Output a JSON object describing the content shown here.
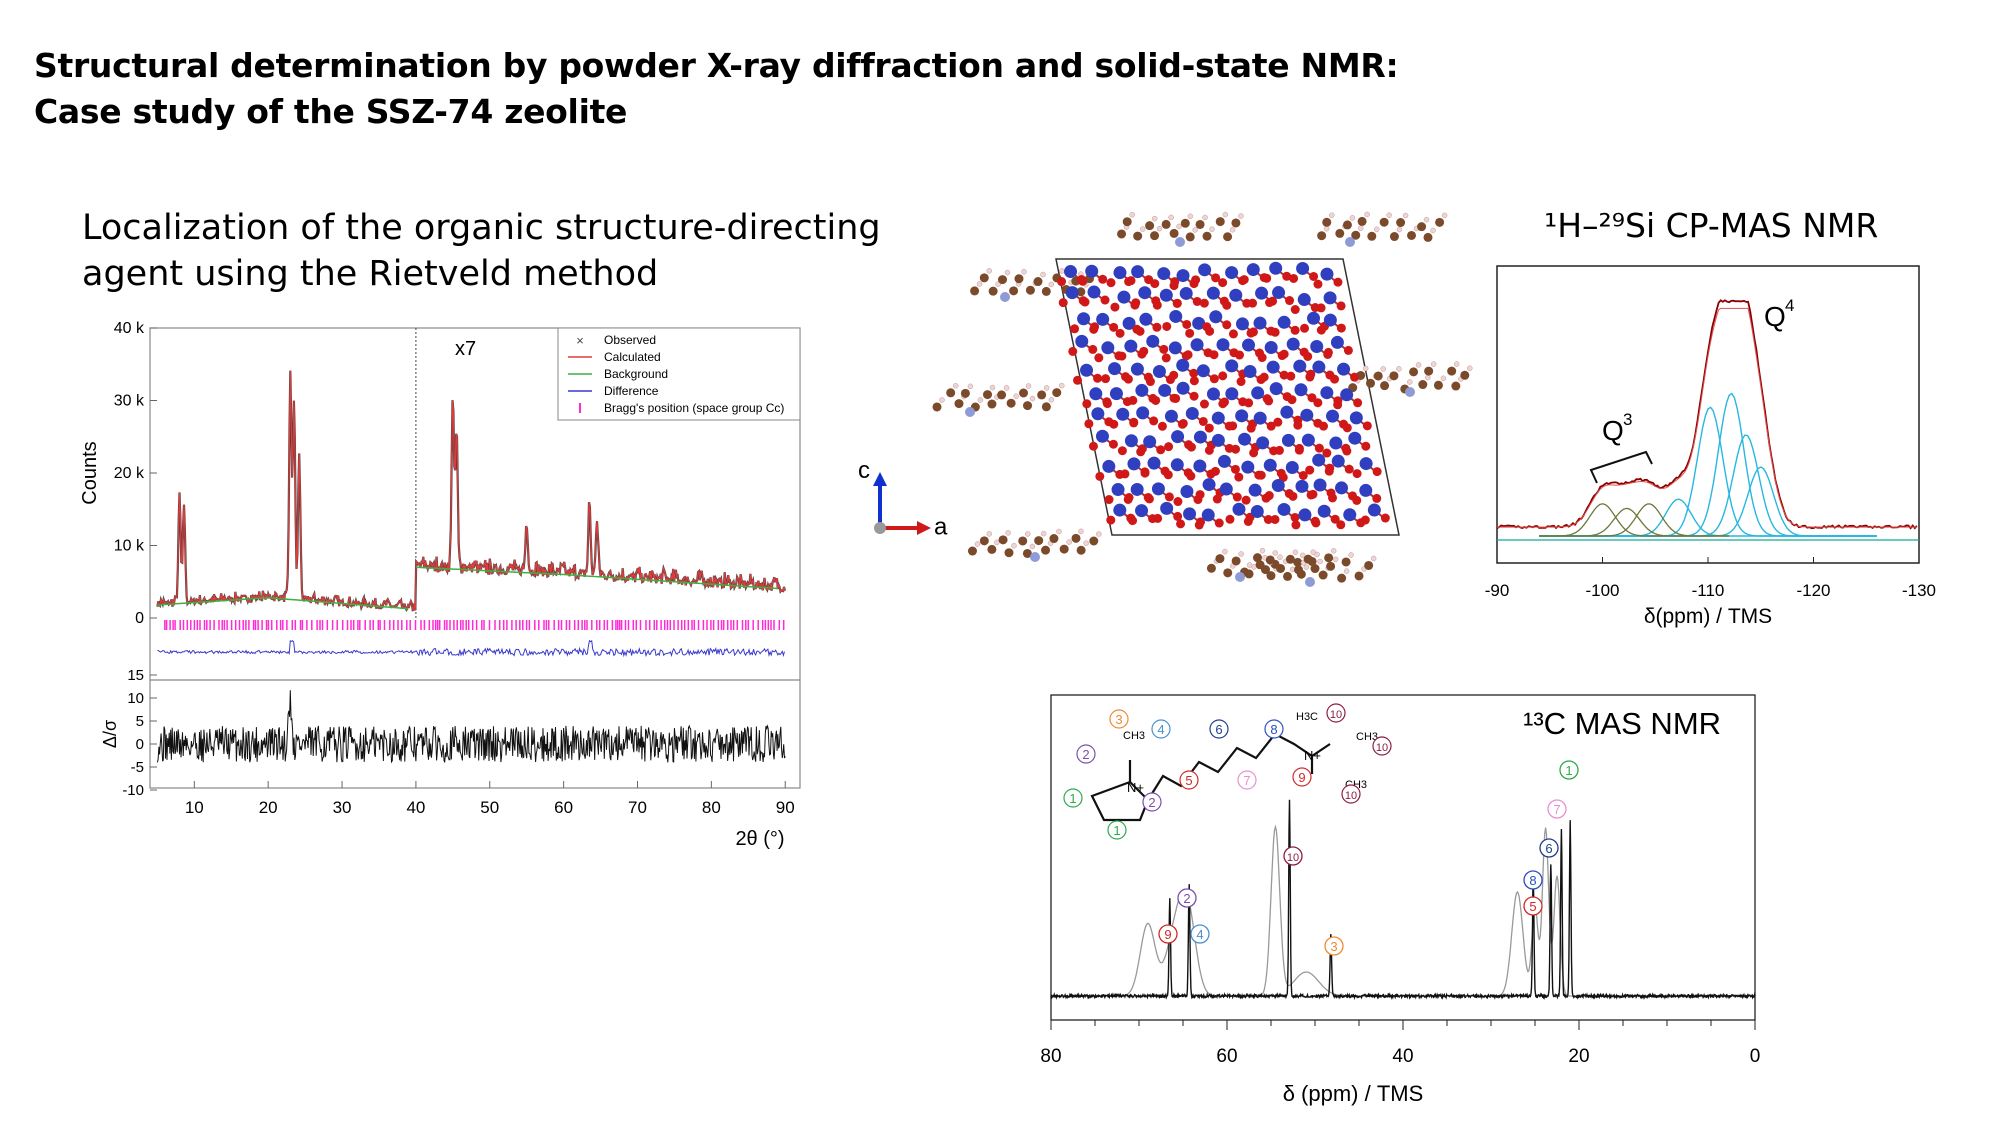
{
  "slide": {
    "title_line1": "Structural determination by powder X-ray diffraction and solid-state NMR:",
    "title_line2": "Case study of the SSZ-74 zeolite",
    "rietveld_heading_line1": "Localization of the organic structure-directing",
    "rietveld_heading_line2": "agent using the Rietveld method"
  },
  "colors": {
    "observed": "#444444",
    "calculated": "#e23b3b",
    "background": "#3cb043",
    "difference": "#3a3acc",
    "bragg": "#ff2bd6",
    "si_atom": "#2f3fc0",
    "o_atom": "#d01818",
    "c_atom": "#7a4a2a",
    "n_atom": "#8f9bd6",
    "h_atom": "#f0d4d4",
    "si_fit": "#27b7e0",
    "si_envelope": "#8b0000"
  },
  "chart_data": [
    {
      "type": "line",
      "panel": "Rietveld refinement",
      "annotation": "x7",
      "xlabel": "2θ (°)",
      "ylabel": "Counts",
      "xlim": [
        4,
        92
      ],
      "ylim": [
        0,
        40000
      ],
      "x_ticks": [
        "10",
        "20",
        "30",
        "40",
        "50",
        "60",
        "70",
        "80",
        "90"
      ],
      "y_ticks": [
        "0",
        "10 k",
        "20 k",
        "30 k",
        "40 k"
      ],
      "legend": [
        "Observed",
        "Calculated",
        "Background",
        "Difference",
        "Bragg's position (space group Cc)"
      ],
      "legend_placement": "top-right",
      "scale_change_at_2theta": 40,
      "background": {
        "x": [
          5,
          20,
          40,
          40,
          60,
          90
        ],
        "y": [
          1800,
          2800,
          1200,
          7000,
          6000,
          4000
        ]
      },
      "peaks": [
        {
          "x": 8.0,
          "y": 17000
        },
        {
          "x": 8.6,
          "y": 15500
        },
        {
          "x": 23.0,
          "y": 34000
        },
        {
          "x": 23.5,
          "y": 30000
        },
        {
          "x": 24.2,
          "y": 22000
        },
        {
          "x": 45.0,
          "y": 31000
        },
        {
          "x": 45.5,
          "y": 26000
        },
        {
          "x": 55.0,
          "y": 13000
        },
        {
          "x": 63.5,
          "y": 15500
        },
        {
          "x": 64.5,
          "y": 13000
        }
      ],
      "residual_panel": {
        "ylabel": "Δ/σ",
        "ylim": [
          -10,
          15
        ],
        "y_ticks": [
          "15",
          "10",
          "5",
          "0",
          "-5",
          "-10"
        ]
      }
    },
    {
      "type": "line",
      "panel": "1H-29Si CP-MAS NMR",
      "xlabel": "δ(ppm) / TMS",
      "xlim": [
        -90,
        -130
      ],
      "x_ticks": [
        "-90",
        "-100",
        "-110",
        "-120",
        "-130"
      ],
      "labels": [
        "Q3",
        "Q4"
      ],
      "q4_components": [
        {
          "center": -110.2,
          "height": 0.56
        },
        {
          "center": -112.2,
          "height": 0.62
        },
        {
          "center": -113.6,
          "height": 0.44
        },
        {
          "center": -115.0,
          "height": 0.3
        },
        {
          "center": -107.2,
          "height": 0.16
        }
      ],
      "q3_components": [
        {
          "center": -100.0,
          "height": 0.14
        },
        {
          "center": -102.3,
          "height": 0.12
        },
        {
          "center": -104.4,
          "height": 0.14
        }
      ],
      "envelope_peak": {
        "x": -112.4,
        "y": 1.0
      }
    },
    {
      "type": "line",
      "panel": "13C MAS NMR",
      "xlabel": "δ (ppm) / TMS",
      "xlim": [
        80,
        0
      ],
      "x_ticks": [
        "80",
        "60",
        "40",
        "20",
        "0"
      ],
      "assignments": [
        {
          "label": "9",
          "ppm": 66.5
        },
        {
          "label": "4",
          "ppm": 64.3
        },
        {
          "label": "2",
          "ppm": 64.3
        },
        {
          "label": "10",
          "ppm": 52.9
        },
        {
          "label": "3",
          "ppm": 48.2
        },
        {
          "label": "5",
          "ppm": 25.2
        },
        {
          "label": "8",
          "ppm": 25.2
        },
        {
          "label": "6",
          "ppm": 23.2
        },
        {
          "label": "7",
          "ppm": 22.0
        },
        {
          "label": "1",
          "ppm": 21.0
        }
      ],
      "molecule_labels": {
        "ch3_left": "CH3",
        "ch3_right_top": "CH3",
        "h3c": "H3C",
        "ch3_bottom": "CH3",
        "n_plus": "N+"
      }
    }
  ],
  "structure_panel": {
    "axis_c": "c",
    "axis_a": "a"
  },
  "si_panel_title": "¹H–²⁹Si CP-MAS NMR",
  "c_panel_title": "¹³C MAS NMR"
}
